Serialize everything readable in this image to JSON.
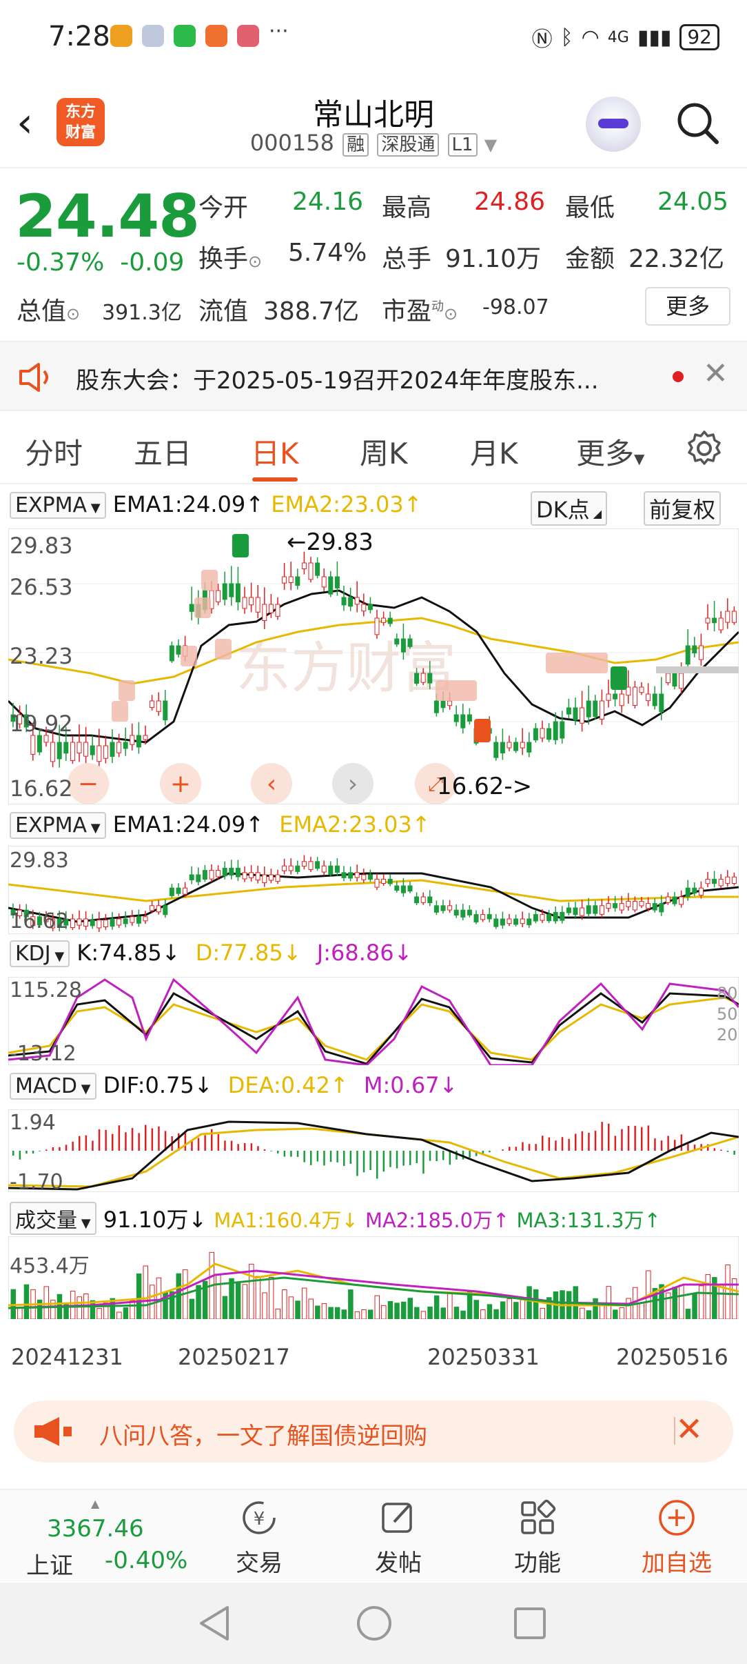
{
  "status": {
    "time": "7:28",
    "network": "4G",
    "battery": "92"
  },
  "header": {
    "back_icon": "back-arrow-icon",
    "logo_text_line1": "东方",
    "logo_text_line2": "财富",
    "name": "常山北明",
    "code": "000158",
    "tag1": "融",
    "tag2": "深股通",
    "tag3": "L1"
  },
  "quote": {
    "price": "24.48",
    "change_pct": "-0.37%",
    "change_amt": "-0.09",
    "open_label": "今开",
    "open": "24.16",
    "high_label": "最高",
    "high": "24.86",
    "low_label": "最低",
    "low": "24.05",
    "turnover_label": "换手",
    "turnover": "5.74%",
    "volume_label": "总手",
    "volume": "91.10万",
    "amount_label": "金额",
    "amount": "22.32亿",
    "total_value_label": "总值",
    "total_value": "391.3亿",
    "float_value_label": "流值",
    "float_value": "388.7亿",
    "pe_label": "市盈",
    "pe_sup": "动",
    "pe": "-98.07",
    "more_label": "更多"
  },
  "notice": {
    "text": "股东大会：于2025-05-19召开2024年年度股东..."
  },
  "tabs": [
    "分时",
    "五日",
    "日K",
    "周K",
    "月K",
    "更多"
  ],
  "main_panel": {
    "indicator": "EXPMA",
    "ema1": "EMA1:24.09↑",
    "ema2": "EMA2:23.03↑",
    "dk_button": "DK点",
    "adjust_button": "前复权",
    "high_marker": "←29.83",
    "low_marker": "16.62->",
    "y_labels": [
      "29.83",
      "26.53",
      "23.23",
      "19.92",
      "16.62"
    ]
  },
  "expma_panel": {
    "indicator": "EXPMA",
    "ema1": "EMA1:24.09↑",
    "ema2": "EMA2:23.03↑",
    "y_top": "29.83",
    "y_bottom": "16.62"
  },
  "kdj_panel": {
    "indicator": "KDJ",
    "k": "K:74.85↓",
    "d": "D:77.85↓",
    "j": "J:68.86↓",
    "y_top": "115.28",
    "y_bottom": "-13.12",
    "r80": "80",
    "r50": "50",
    "r20": "20"
  },
  "macd_panel": {
    "indicator": "MACD",
    "dif": "DIF:0.75↓",
    "dea": "DEA:0.42↑",
    "m": "M:0.67↓",
    "y_top": "1.94",
    "y_bottom": "-1.70"
  },
  "vol_panel": {
    "indicator": "成交量",
    "vol": "91.10万↓",
    "ma1": "MA1:160.4万↓",
    "ma2": "MA2:185.0万↑",
    "ma3": "MA3:131.3万↑",
    "y_top": "453.4万"
  },
  "dates": [
    "20241231",
    "20250217",
    "20250331",
    "20250516"
  ],
  "banner": {
    "text": "八问八答，一文了解国债逆回购"
  },
  "bottom": {
    "index_value": "3367.46",
    "index_name": "上证",
    "index_change": "-0.40%",
    "items": [
      "交易",
      "发帖",
      "功能",
      "加自选"
    ]
  },
  "colors": {
    "up": "#e02020",
    "down": "#1a9c3c",
    "accent": "#e8521f",
    "ema2": "#e6b800",
    "j_line": "#c020c0"
  }
}
